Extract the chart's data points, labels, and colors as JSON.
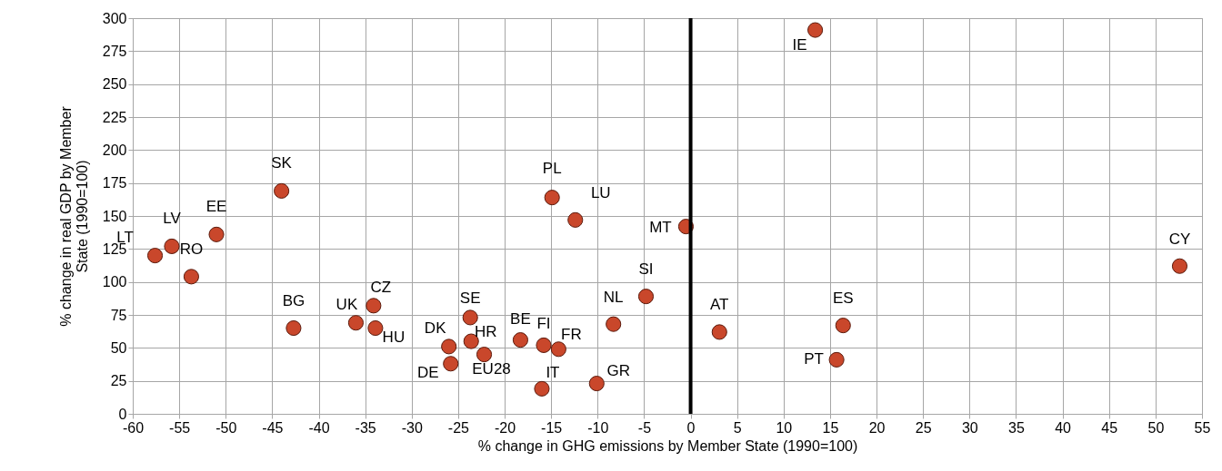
{
  "chart_data": {
    "type": "scatter",
    "xlabel": "% change in GHG emissions by Member State (1990=100)",
    "ylabel": "% change in real GDP by Member State (1990=100)",
    "x": [
      -57.6,
      -55.8,
      -53.7,
      -51.0,
      -44.0,
      -42.7,
      -36.0,
      -34.1,
      -33.9,
      -26.0,
      -25.8,
      -23.7,
      -23.6,
      -22.2,
      -18.3,
      -15.8,
      -16.0,
      -14.2,
      -14.9,
      -12.4,
      -10.1,
      -8.3,
      -4.8,
      -0.5,
      3.1,
      13.4,
      15.7,
      16.4,
      52.6
    ],
    "values": [
      120,
      127,
      104,
      136,
      169,
      65,
      69,
      82,
      65,
      51,
      38,
      73,
      55,
      45,
      56,
      52,
      19,
      49,
      164,
      147,
      23,
      68,
      89,
      142,
      62,
      291,
      41,
      67,
      112
    ],
    "value_labels": [
      "LT",
      "LV",
      "RO",
      "EE",
      "SK",
      "BG",
      "UK",
      "CZ",
      "HU",
      "DK",
      "DE",
      "SE",
      "HR",
      "EU28",
      "BE",
      "FI",
      "IT",
      "FR",
      "PL",
      "LU",
      "GR",
      "NL",
      "SI",
      "MT",
      "AT",
      "IE",
      "PT",
      "ES",
      "CY"
    ],
    "color": "#c9472b",
    "marker": "circle",
    "grid": true,
    "xlim": [
      -60,
      55
    ],
    "xticks": [
      -60,
      -55,
      -50,
      -45,
      -40,
      -35,
      -30,
      -25,
      -20,
      -15,
      -10,
      -5,
      0,
      5,
      10,
      15,
      20,
      25,
      30,
      35,
      40,
      45,
      50,
      55
    ],
    "ylim": [
      0,
      300
    ],
    "yticks": [
      0,
      25,
      50,
      75,
      100,
      125,
      150,
      175,
      200,
      225,
      250,
      275,
      300
    ],
    "ref_lines": [
      {
        "axis": "x",
        "value": 0,
        "color": "#000000"
      }
    ]
  }
}
